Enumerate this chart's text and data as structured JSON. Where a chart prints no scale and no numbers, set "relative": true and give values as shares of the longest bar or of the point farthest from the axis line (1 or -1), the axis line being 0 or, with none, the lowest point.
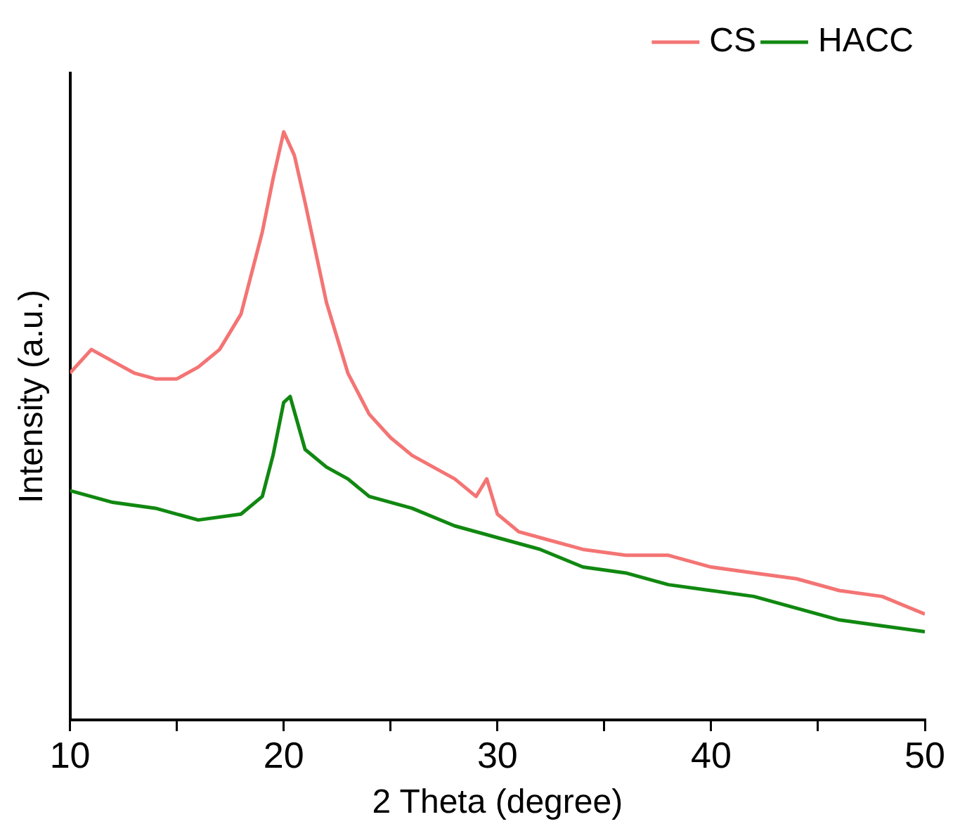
{
  "chart_data": {
    "type": "line",
    "xlabel": "2 Theta (degree)",
    "ylabel": "Intensity (a.u.)",
    "relative": true,
    "xlim": [
      10,
      50
    ],
    "xticks": [
      10,
      {
        "value": 15,
        "label": null
      },
      20,
      {
        "value": 25,
        "label": null
      },
      30,
      {
        "value": 35,
        "label": null
      },
      40,
      {
        "value": 45,
        "label": null
      },
      50
    ],
    "grid": false,
    "legend": "top right",
    "marker": "none",
    "line_style": "solid",
    "series": [
      {
        "name": "CS",
        "color": "#f47474",
        "x": [
          10,
          11,
          12,
          13,
          14,
          15,
          16,
          17,
          18,
          19,
          19.5,
          20,
          20.5,
          21,
          22,
          23,
          24,
          25,
          26,
          27,
          28,
          29,
          29.5,
          30,
          31,
          32,
          34,
          36,
          38,
          40,
          42,
          44,
          46,
          48,
          50
        ],
        "values": [
          0.59,
          0.63,
          0.61,
          0.59,
          0.58,
          0.58,
          0.6,
          0.63,
          0.69,
          0.83,
          0.92,
          1,
          0.96,
          0.88,
          0.71,
          0.59,
          0.52,
          0.48,
          0.45,
          0.43,
          0.41,
          0.38,
          0.41,
          0.35,
          0.32,
          0.31,
          0.29,
          0.28,
          0.28,
          0.26,
          0.25,
          0.24,
          0.22,
          0.21,
          0.18
        ]
      },
      {
        "name": "HACC",
        "color": "#118811",
        "x": [
          10,
          12,
          14,
          16,
          18,
          19,
          19.5,
          20,
          20.3,
          21,
          22,
          23,
          24,
          26,
          28,
          30,
          32,
          34,
          36,
          38,
          40,
          42,
          44,
          46,
          48,
          50
        ],
        "values": [
          0.39,
          0.37,
          0.36,
          0.34,
          0.35,
          0.38,
          0.45,
          0.54,
          0.55,
          0.46,
          0.43,
          0.41,
          0.38,
          0.36,
          0.33,
          0.31,
          0.29,
          0.26,
          0.25,
          0.23,
          0.22,
          0.21,
          0.19,
          0.17,
          0.16,
          0.15
        ]
      }
    ]
  }
}
